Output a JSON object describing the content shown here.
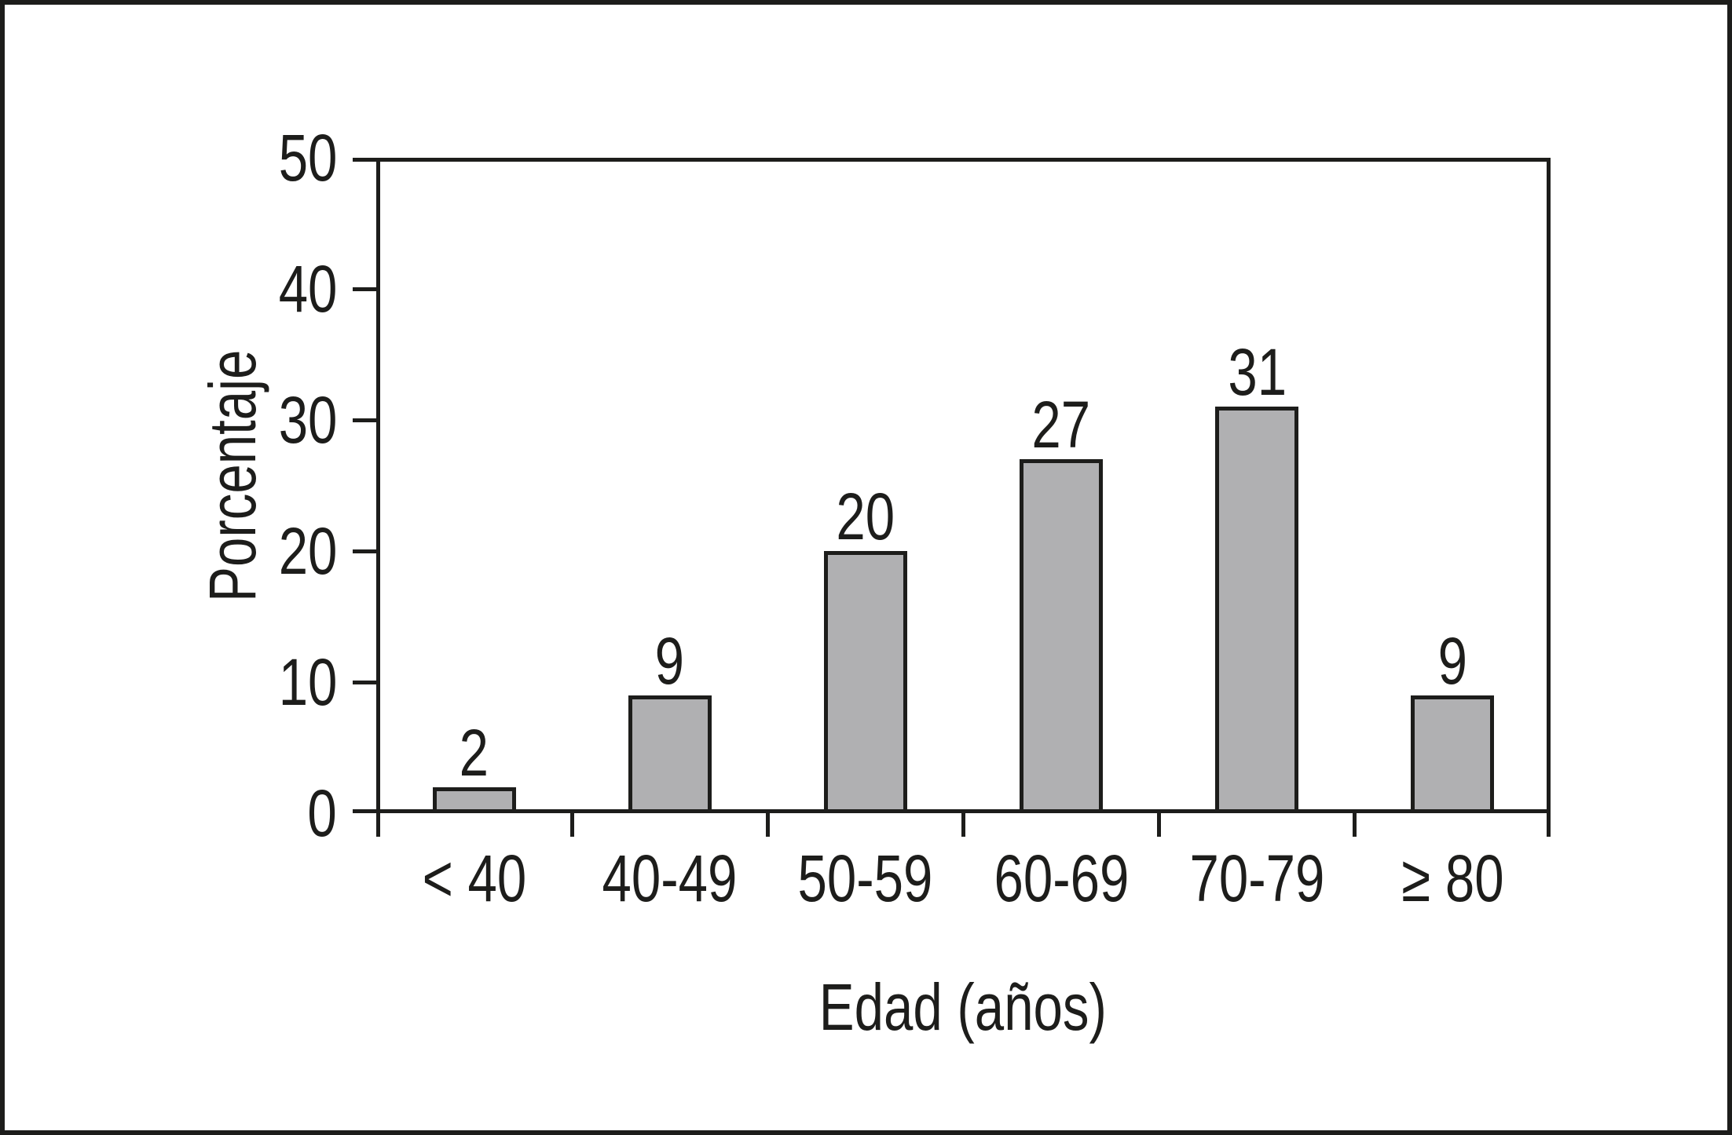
{
  "figure": {
    "background": "#ffffff",
    "frame_color": "#1d1d1b"
  },
  "chart_data": {
    "type": "bar",
    "title": "",
    "categories": [
      "< 40",
      "40-49",
      "50-59",
      "60-69",
      "70-79",
      "≥ 80"
    ],
    "values": [
      2,
      9,
      20,
      27,
      31,
      9
    ],
    "bar_value_labels": [
      "2",
      "9",
      "20",
      "27",
      "31",
      "9"
    ],
    "xlabel": "Edad (años)",
    "ylabel": "Porcentaje",
    "ylim": [
      0,
      50
    ],
    "yticks": [
      0,
      10,
      20,
      30,
      40,
      50
    ],
    "ytick_labels": [
      "0",
      "10",
      "20",
      "30",
      "40",
      "50"
    ],
    "grid": false,
    "legend_position": "none",
    "bar_fill_color": "#b0b0b2",
    "bar_border_color": "#1d1d1b",
    "axis_color": "#1d1d1b",
    "text_color": "#1d1d1b"
  }
}
